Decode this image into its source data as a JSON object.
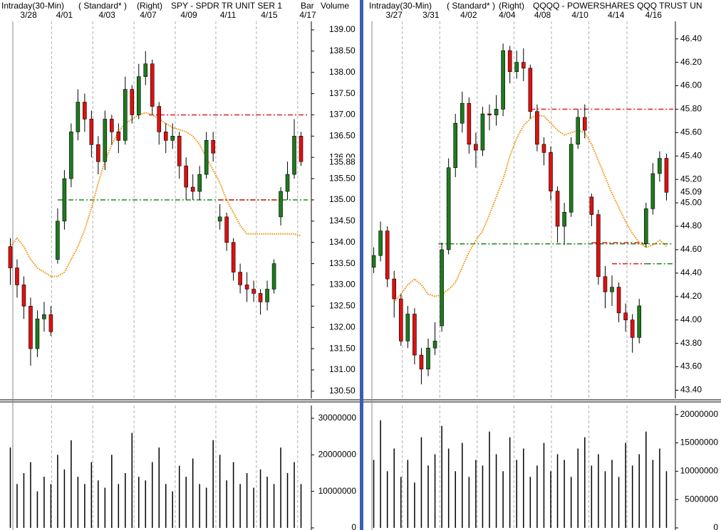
{
  "chart_data": [
    {
      "type": "candlestick",
      "header": {
        "interval": "Intraday(30-Min)",
        "style": "( Standard* )",
        "side": "(Right)",
        "title": "SPY - SPDR TR UNIT SER 1",
        "bar": "Bar",
        "volume": "Volume"
      },
      "xlim": [
        -1,
        44
      ],
      "xticks": [
        {
          "value": 2.7,
          "label": "3/28"
        },
        {
          "value": 8.0,
          "label": "4/01"
        },
        {
          "value": 14.3,
          "label": "4/03"
        },
        {
          "value": 20.4,
          "label": "4/07"
        },
        {
          "value": 26.4,
          "label": "4/09"
        },
        {
          "value": 32.2,
          "label": "4/11"
        },
        {
          "value": 38.3,
          "label": "4/15"
        },
        {
          "value": 44.0,
          "label": "4/17"
        }
      ],
      "day_lines": [
        6.1,
        12.2,
        18.3,
        24.4,
        30.4,
        36.4,
        42.5
      ],
      "ylim": [
        130.33,
        139.2
      ],
      "yticks": [
        {
          "value": 139,
          "label": "139.00"
        },
        {
          "value": 138.5,
          "label": "138.50"
        },
        {
          "value": 138,
          "label": "138.00"
        },
        {
          "value": 137.5,
          "label": "137.50"
        },
        {
          "value": 137,
          "label": "137.00"
        },
        {
          "value": 136.5,
          "label": "136.50"
        },
        {
          "value": 136,
          "label": "136.00"
        },
        {
          "value": 135.5,
          "label": "135.50"
        },
        {
          "value": 135,
          "label": "135.00"
        },
        {
          "value": 134.5,
          "label": "134.50"
        },
        {
          "value": 134,
          "label": "134.00"
        },
        {
          "value": 133.5,
          "label": "133.50"
        },
        {
          "value": 133,
          "label": "133.00"
        },
        {
          "value": 132.5,
          "label": "132.50"
        },
        {
          "value": 132,
          "label": "132.00"
        },
        {
          "value": 131.5,
          "label": "131.50"
        },
        {
          "value": 131,
          "label": "131.00"
        },
        {
          "value": 130.5,
          "label": "130.50"
        }
      ],
      "last": {
        "value": 135.88,
        "label": "135.88"
      },
      "up_color": "#1e7a1e",
      "down_color": "#e01010",
      "open": [
        133.9,
        133.4,
        133.0,
        132.5,
        131.5,
        132.2,
        132.3,
        133.6,
        134.5,
        135.5,
        136.6,
        137.3,
        136.9,
        136.3,
        135.9,
        136.9,
        136.6,
        136.4,
        137.6,
        137.0,
        137.9,
        138.2,
        137.2,
        136.6,
        136.4,
        136.5,
        135.8,
        135.3,
        135.2,
        135.6,
        136.4,
        134.5,
        134.6,
        134.0,
        133.3,
        133.0,
        132.9,
        132.8,
        132.6,
        132.9,
        134.6,
        135.2,
        135.6,
        136.5
      ],
      "high": [
        134.1,
        133.6,
        133.2,
        132.7,
        132.4,
        132.6,
        132.5,
        134.8,
        135.7,
        136.8,
        137.6,
        137.5,
        137.1,
        136.5,
        137.1,
        137.0,
        136.8,
        137.9,
        137.7,
        138.2,
        138.5,
        138.3,
        137.3,
        136.8,
        136.8,
        136.6,
        136.0,
        135.6,
        135.8,
        136.6,
        136.6,
        134.9,
        134.7,
        134.1,
        133.5,
        133.3,
        133.1,
        132.9,
        133.1,
        133.6,
        135.3,
        135.9,
        136.9,
        136.6
      ],
      "low": [
        133.0,
        132.7,
        132.2,
        131.1,
        131.3,
        131.9,
        131.8,
        133.5,
        134.3,
        135.3,
        136.4,
        136.6,
        136.0,
        135.6,
        135.7,
        136.3,
        136.1,
        136.3,
        136.8,
        136.9,
        137.7,
        137.0,
        136.3,
        136.1,
        136.2,
        135.5,
        135.0,
        135.0,
        135.0,
        135.5,
        135.9,
        134.3,
        133.8,
        133.1,
        132.8,
        132.6,
        132.6,
        132.3,
        132.4,
        132.8,
        134.4,
        135.0,
        135.5,
        135.8
      ],
      "close": [
        133.4,
        133.0,
        132.5,
        131.5,
        132.2,
        132.3,
        131.9,
        134.5,
        135.5,
        136.6,
        137.3,
        136.9,
        136.3,
        135.9,
        136.9,
        136.6,
        136.4,
        137.6,
        137.0,
        137.9,
        138.2,
        137.2,
        136.6,
        136.4,
        136.5,
        135.8,
        135.3,
        135.2,
        135.6,
        136.4,
        136.1,
        134.6,
        134.0,
        133.3,
        133.0,
        132.9,
        132.8,
        132.6,
        132.9,
        133.5,
        135.2,
        135.6,
        136.5,
        135.9
      ],
      "ma": {
        "color": "#f08a00",
        "values": [
          133.9,
          134.1,
          133.9,
          133.6,
          133.4,
          133.3,
          133.2,
          133.2,
          133.3,
          133.6,
          133.9,
          134.3,
          134.8,
          135.4,
          135.9,
          136.3,
          136.6,
          136.8,
          136.9,
          137.0,
          137.05,
          137.0,
          136.9,
          136.8,
          136.7,
          136.65,
          136.6,
          136.5,
          136.3,
          136.0,
          135.7,
          135.4,
          135.0,
          134.7,
          134.4,
          134.2,
          134.2,
          134.2,
          134.2,
          134.2,
          134.2,
          134.2,
          134.2,
          134.15
        ]
      },
      "levels": [
        {
          "value": 137.0,
          "color": "#e02020",
          "start": 20.5,
          "end": 44
        },
        {
          "value": 135.0,
          "color": "#1a8a1a",
          "start": 7,
          "end": 44
        },
        {
          "value": 135.0,
          "color": "#e02020",
          "start": 30.8,
          "end": 40
        }
      ],
      "volume": {
        "color": "#000000",
        "ylim": [
          0,
          33500000
        ],
        "yticks": [
          0,
          10000000,
          20000000,
          30000000
        ],
        "values": [
          22000000,
          12000000,
          15000000,
          18000000,
          10000000,
          14000000,
          12000000,
          20000000,
          16000000,
          24000000,
          14000000,
          12000000,
          18000000,
          13000000,
          11000000,
          20000000,
          12000000,
          15000000,
          26000000,
          14000000,
          13000000,
          18000000,
          22000000,
          12000000,
          10000000,
          17000000,
          14000000,
          19000000,
          12000000,
          11000000,
          24000000,
          20000000,
          13000000,
          18000000,
          12000000,
          15000000,
          11000000,
          16000000,
          14000000,
          12000000,
          22000000,
          15000000,
          18000000,
          12000000
        ]
      }
    },
    {
      "type": "candlestick",
      "header": {
        "interval": "Intraday(30-Min)",
        "style": "( Standard* )",
        "side": "(Right)",
        "title": "QQQQ - POWERSHARES QQQ TRUST UN"
      },
      "xlim": [
        -1,
        44
      ],
      "xticks": [
        {
          "value": 3.0,
          "label": "3/27"
        },
        {
          "value": 8.4,
          "label": "3/31"
        },
        {
          "value": 13.95,
          "label": "4/02"
        },
        {
          "value": 19.6,
          "label": "4/04"
        },
        {
          "value": 24.8,
          "label": "4/08"
        },
        {
          "value": 30.3,
          "label": "4/10"
        },
        {
          "value": 35.6,
          "label": "4/14"
        },
        {
          "value": 41.1,
          "label": "4/16"
        }
      ],
      "day_lines": [
        4.2,
        9.7,
        15.2,
        20.6,
        26.1,
        31.6,
        37.2
      ],
      "ylim": [
        43.33,
        46.55
      ],
      "yticks": [
        {
          "value": 46.4,
          "label": "46.40"
        },
        {
          "value": 46.2,
          "label": "46.20"
        },
        {
          "value": 46,
          "label": "46.00"
        },
        {
          "value": 45.8,
          "label": "45.80"
        },
        {
          "value": 45.6,
          "label": "45.60"
        },
        {
          "value": 45.4,
          "label": "45.40"
        },
        {
          "value": 45.2,
          "label": "45.20"
        },
        {
          "value": 45,
          "label": "45.00"
        },
        {
          "value": 44.8,
          "label": "44.80"
        },
        {
          "value": 44.6,
          "label": "44.60"
        },
        {
          "value": 44.4,
          "label": "44.40"
        },
        {
          "value": 44.2,
          "label": "44.20"
        },
        {
          "value": 44,
          "label": "44.00"
        },
        {
          "value": 43.8,
          "label": "43.80"
        },
        {
          "value": 43.6,
          "label": "43.60"
        },
        {
          "value": 43.4,
          "label": "43.40"
        }
      ],
      "last": {
        "value": 45.09,
        "label": "45.09"
      },
      "up_color": "#1e7a1e",
      "down_color": "#e01010",
      "open": [
        44.45,
        44.55,
        44.76,
        44.35,
        44.18,
        43.82,
        44.05,
        43.7,
        43.58,
        43.76,
        43.95,
        44.6,
        45.3,
        45.68,
        45.85,
        45.5,
        45.45,
        45.76,
        45.75,
        45.8,
        46.3,
        46.12,
        46.2,
        46.15,
        45.78,
        45.5,
        45.43,
        45.1,
        44.8,
        44.92,
        45.5,
        45.73,
        45.05,
        44.9,
        44.37,
        44.24,
        44.28,
        44.06,
        44.0,
        43.85,
        44.65,
        44.95,
        45.25,
        45.38
      ],
      "high": [
        44.62,
        44.84,
        44.8,
        44.42,
        44.22,
        44.12,
        44.1,
        43.76,
        43.84,
        43.98,
        44.66,
        45.38,
        45.76,
        45.95,
        45.9,
        45.6,
        45.82,
        45.84,
        45.92,
        46.36,
        46.34,
        46.3,
        46.32,
        46.18,
        45.84,
        45.56,
        45.48,
        45.14,
        45.0,
        45.56,
        45.8,
        45.84,
        45.08,
        44.94,
        44.46,
        44.38,
        44.32,
        44.14,
        44.05,
        44.18,
        45.0,
        45.34,
        45.44,
        45.42
      ],
      "low": [
        44.4,
        44.5,
        44.28,
        44.02,
        43.78,
        43.76,
        43.62,
        43.45,
        43.52,
        43.7,
        43.9,
        44.56,
        45.22,
        45.6,
        45.42,
        45.3,
        45.4,
        45.62,
        45.66,
        45.74,
        46.02,
        46.06,
        46.04,
        45.72,
        45.44,
        45.32,
        45.02,
        44.66,
        44.64,
        44.88,
        45.46,
        45.55,
        44.8,
        44.3,
        44.1,
        44.12,
        43.98,
        43.9,
        43.72,
        43.8,
        44.62,
        44.9,
        45.18,
        45.02
      ],
      "close": [
        44.55,
        44.76,
        44.35,
        44.18,
        43.82,
        44.05,
        43.7,
        43.58,
        43.76,
        43.82,
        44.6,
        45.3,
        45.68,
        45.85,
        45.5,
        45.45,
        45.76,
        45.75,
        45.8,
        46.3,
        46.12,
        46.2,
        46.15,
        45.78,
        45.5,
        45.43,
        45.1,
        44.8,
        44.92,
        45.5,
        45.73,
        45.62,
        44.9,
        44.37,
        44.24,
        44.28,
        44.06,
        44.0,
        43.85,
        44.12,
        44.95,
        45.25,
        45.38,
        45.09
      ],
      "ma": {
        "color": "#f08a00",
        "values": [
          null,
          null,
          null,
          44.15,
          44.22,
          44.3,
          44.35,
          44.3,
          44.22,
          44.2,
          44.22,
          44.26,
          44.32,
          44.45,
          44.58,
          44.68,
          44.76,
          44.9,
          45.05,
          45.2,
          45.4,
          45.55,
          45.66,
          45.72,
          45.75,
          45.74,
          45.68,
          45.62,
          45.58,
          45.6,
          45.62,
          45.6,
          45.5,
          45.36,
          45.22,
          45.08,
          44.96,
          44.84,
          44.74,
          44.66,
          44.62,
          44.64,
          44.68,
          44.63
        ]
      },
      "levels": [
        {
          "value": 45.8,
          "color": "#e02020",
          "start": 23,
          "end": 44
        },
        {
          "value": 44.65,
          "color": "#1a8a1a",
          "start": 9.5,
          "end": 44
        },
        {
          "value": 44.66,
          "color": "#e02020",
          "start": 32,
          "end": 40
        },
        {
          "value": 44.48,
          "color": "#e02020",
          "start": 35,
          "end": 40
        },
        {
          "value": 44.48,
          "color": "#1a8a1a",
          "start": 40,
          "end": 44
        }
      ],
      "volume": {
        "color": "#000000",
        "ylim": [
          0,
          21600000
        ],
        "yticks": [
          0,
          5000000,
          10000000,
          15000000,
          20000000
        ],
        "values": [
          12000000,
          19000000,
          10000000,
          14000000,
          9000000,
          12000000,
          8000000,
          16000000,
          11000000,
          13000000,
          18000000,
          14000000,
          10000000,
          15000000,
          9000000,
          12000000,
          11000000,
          17000000,
          13000000,
          10000000,
          16000000,
          12000000,
          14000000,
          9000000,
          11000000,
          15000000,
          10000000,
          13000000,
          12000000,
          9000000,
          14000000,
          16000000,
          11000000,
          13000000,
          10000000,
          12000000,
          9000000,
          15000000,
          11000000,
          13000000,
          17000000,
          12000000,
          14000000,
          10000000
        ]
      }
    }
  ]
}
